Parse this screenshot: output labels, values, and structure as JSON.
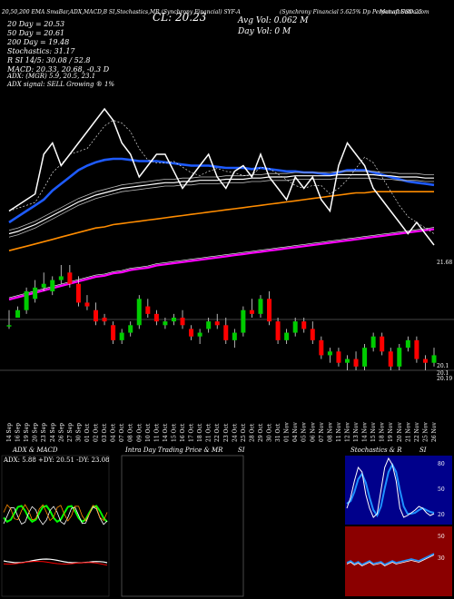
{
  "header": {
    "top_line": "20,50,200 EMA SmaBar,ADX,MACD,B    SI,Stochastics,MR       (Synchrony Financial) SYF-A",
    "right_title": "(Synchrony Financial 5.625% Dp Perpetual USD 25",
    "brand": "MunafaSutra.com",
    "cl": "CL: 20.23",
    "avg_vol": "Avg Vol: 0.062  M",
    "day_vol": "Day Vol: 0   M",
    "ma_lines": [
      "20  Day  = 20.53",
      "50  Day  = 20.61",
      "200  Day  = 19.48"
    ],
    "stoch": [
      "Stochastics: 31.17",
      "R          SI 14/5: 30.08  / 52.8"
    ],
    "macd": "MACD: 20.33, 20.68, -0.3 D",
    "adx": "ADX:                          (MGR) 5.9, 20.5, 23.1",
    "adx_signal": "ADX  signal: SELL Growing ® 1%"
  },
  "price_axis": {
    "top_label": "21.68",
    "bottom_labels": [
      "20.1",
      "20.1",
      "20.19"
    ]
  },
  "dates": [
    "14 Sep",
    "16 Sep",
    "19 Sep",
    "20 Sep",
    "23 Sep",
    "24 Sep",
    "26 Sep",
    "27 Sep",
    "30 Sep",
    "01 Oct",
    "02 Oct",
    "03 Oct",
    "04 Oct",
    "07 Oct",
    "08 Oct",
    "09 Oct",
    "10 Oct",
    "11 Oct",
    "14 Oct",
    "15 Oct",
    "16 Oct",
    "17 Oct",
    "18 Oct",
    "21 Oct",
    "22 Oct",
    "23 Oct",
    "24 Oct",
    "25 Oct",
    "28 Oct",
    "29 Oct",
    "30 Oct",
    "31 Oct",
    "01 Nov",
    "04 Nov",
    "05 Nov",
    "06 Nov",
    "07 Nov",
    "08 Nov",
    "11 Nov",
    "12 Nov",
    "13 Nov",
    "14 Nov",
    "15 Nov",
    "18 Nov",
    "19 Nov",
    "20 Nov",
    "21 Nov",
    "22 Nov",
    "25 Nov",
    "26 Nov"
  ],
  "panels": {
    "adx": {
      "title": "ADX  & MACD",
      "readout": "ADX: 5.88  +DY: 20.51 -DY: 23.08"
    },
    "intra": {
      "title": "Intra  Day Trading Price  & MR",
      "si": "SI"
    },
    "stoch": {
      "title": "Stochastics & R",
      "si": "SI",
      "right_labels": [
        "80",
        "50",
        "20"
      ],
      "mrsi_labels": [
        "50",
        "30"
      ]
    }
  },
  "colors": {
    "up": "#00cc00",
    "down": "#ff0000",
    "ema20": "#1e5bff",
    "ema50": "#ffffff",
    "ema200": "#ff8c00",
    "sma": "#ff00ff",
    "stoch_bg": "#00008b",
    "mrsi_bg": "#8b0000"
  },
  "chart_data": {
    "type": "candlestick",
    "ylim": [
      19.9,
      22.3
    ],
    "categories": [
      "14 Sep",
      "16 Sep",
      "19 Sep",
      "20 Sep",
      "23 Sep",
      "24 Sep",
      "26 Sep",
      "27 Sep",
      "30 Sep",
      "01 Oct",
      "02 Oct",
      "03 Oct",
      "04 Oct",
      "07 Oct",
      "08 Oct",
      "09 Oct",
      "10 Oct",
      "11 Oct",
      "14 Oct",
      "15 Oct",
      "16 Oct",
      "17 Oct",
      "18 Oct",
      "21 Oct",
      "22 Oct",
      "23 Oct",
      "24 Oct",
      "25 Oct",
      "28 Oct",
      "29 Oct",
      "30 Oct",
      "31 Oct",
      "01 Nov",
      "04 Nov",
      "05 Nov",
      "06 Nov",
      "07 Nov",
      "08 Nov",
      "11 Nov",
      "12 Nov",
      "13 Nov",
      "14 Nov",
      "15 Nov",
      "18 Nov",
      "19 Nov",
      "20 Nov",
      "21 Nov",
      "22 Nov",
      "25 Nov",
      "26 Nov"
    ],
    "close_line": [
      21.4,
      21.45,
      21.5,
      21.55,
      21.9,
      22.0,
      21.8,
      21.9,
      22.0,
      22.1,
      22.2,
      22.3,
      22.2,
      22.0,
      21.9,
      21.7,
      21.8,
      21.9,
      21.9,
      21.75,
      21.6,
      21.7,
      21.8,
      21.9,
      21.7,
      21.6,
      21.75,
      21.8,
      21.7,
      21.9,
      21.7,
      21.6,
      21.5,
      21.7,
      21.6,
      21.7,
      21.5,
      21.4,
      21.8,
      22.0,
      21.9,
      21.8,
      21.6,
      21.5,
      21.4,
      21.3,
      21.2,
      21.3,
      21.2,
      21.1
    ],
    "candles": [
      [
        20.6,
        20.8,
        20.55,
        20.6
      ],
      [
        20.7,
        20.85,
        20.7,
        20.8
      ],
      [
        20.8,
        21.1,
        20.75,
        21.05
      ],
      [
        20.95,
        21.2,
        20.9,
        21.1
      ],
      [
        21.1,
        21.3,
        21.05,
        21.15
      ],
      [
        21.05,
        21.25,
        21.0,
        21.2
      ],
      [
        21.2,
        21.4,
        21.15,
        21.25
      ],
      [
        21.3,
        21.4,
        21.1,
        21.15
      ],
      [
        21.15,
        21.25,
        20.85,
        20.9
      ],
      [
        20.9,
        21.0,
        20.8,
        20.85
      ],
      [
        20.8,
        20.9,
        20.6,
        20.65
      ],
      [
        20.7,
        20.75,
        20.6,
        20.65
      ],
      [
        20.6,
        20.65,
        20.35,
        20.4
      ],
      [
        20.4,
        20.55,
        20.35,
        20.5
      ],
      [
        20.5,
        20.65,
        20.45,
        20.6
      ],
      [
        20.6,
        21.0,
        20.55,
        20.95
      ],
      [
        20.85,
        20.95,
        20.7,
        20.75
      ],
      [
        20.75,
        20.8,
        20.6,
        20.65
      ],
      [
        20.6,
        20.7,
        20.55,
        20.65
      ],
      [
        20.65,
        20.75,
        20.6,
        20.7
      ],
      [
        20.7,
        20.8,
        20.55,
        20.6
      ],
      [
        20.55,
        20.6,
        20.4,
        20.45
      ],
      [
        20.45,
        20.55,
        20.35,
        20.5
      ],
      [
        20.55,
        20.7,
        20.5,
        20.65
      ],
      [
        20.65,
        20.75,
        20.55,
        20.6
      ],
      [
        20.6,
        20.7,
        20.35,
        20.4
      ],
      [
        20.4,
        20.55,
        20.3,
        20.5
      ],
      [
        20.5,
        20.85,
        20.45,
        20.8
      ],
      [
        20.8,
        20.95,
        20.7,
        20.75
      ],
      [
        20.75,
        21.0,
        20.7,
        20.95
      ],
      [
        20.95,
        21.05,
        20.6,
        20.65
      ],
      [
        20.65,
        20.7,
        20.35,
        20.4
      ],
      [
        20.4,
        20.55,
        20.35,
        20.5
      ],
      [
        20.5,
        20.7,
        20.45,
        20.65
      ],
      [
        20.65,
        20.7,
        20.5,
        20.55
      ],
      [
        20.55,
        20.65,
        20.35,
        20.4
      ],
      [
        20.4,
        20.45,
        20.15,
        20.2
      ],
      [
        20.2,
        20.3,
        20.1,
        20.25
      ],
      [
        20.25,
        20.3,
        20.05,
        20.1
      ],
      [
        20.1,
        20.2,
        20.0,
        20.15
      ],
      [
        20.15,
        20.25,
        20.0,
        20.05
      ],
      [
        20.05,
        20.35,
        20.0,
        20.3
      ],
      [
        20.3,
        20.5,
        20.25,
        20.45
      ],
      [
        20.45,
        20.5,
        20.2,
        20.25
      ],
      [
        20.25,
        20.3,
        20.0,
        20.05
      ],
      [
        20.05,
        20.35,
        20.0,
        20.3
      ],
      [
        20.3,
        20.45,
        20.25,
        20.4
      ],
      [
        20.4,
        20.45,
        20.1,
        20.15
      ],
      [
        20.15,
        20.2,
        20.0,
        20.1
      ],
      [
        20.1,
        20.3,
        20.05,
        20.2
      ]
    ],
    "series": [
      {
        "values": [
          21.3,
          21.35,
          21.4,
          21.45,
          21.5,
          21.58,
          21.64,
          21.7,
          21.76,
          21.8,
          21.83,
          21.85,
          21.86,
          21.86,
          21.85,
          21.84,
          21.84,
          21.84,
          21.83,
          21.82,
          21.81,
          21.8,
          21.8,
          21.8,
          21.79,
          21.78,
          21.78,
          21.78,
          21.77,
          21.78,
          21.77,
          21.76,
          21.75,
          21.75,
          21.74,
          21.74,
          21.73,
          21.72,
          21.74,
          21.76,
          21.76,
          21.76,
          21.74,
          21.72,
          21.7,
          21.68,
          21.66,
          21.65,
          21.64,
          21.63
        ]
      },
      {
        "values": [
          21.2,
          21.22,
          21.25,
          21.28,
          21.32,
          21.36,
          21.4,
          21.44,
          21.48,
          21.51,
          21.54,
          21.56,
          21.58,
          21.6,
          21.61,
          21.62,
          21.63,
          21.64,
          21.65,
          21.65,
          21.66,
          21.66,
          21.67,
          21.67,
          21.67,
          21.68,
          21.68,
          21.68,
          21.69,
          21.69,
          21.7,
          21.7,
          21.7,
          21.71,
          21.71,
          21.71,
          21.71,
          21.71,
          21.72,
          21.72,
          21.72,
          21.72,
          21.72,
          21.71,
          21.71,
          21.7,
          21.7,
          21.7,
          21.69,
          21.69
        ]
      },
      {
        "values": [
          21.05,
          21.07,
          21.09,
          21.11,
          21.13,
          21.15,
          21.17,
          21.19,
          21.21,
          21.23,
          21.25,
          21.26,
          21.28,
          21.29,
          21.3,
          21.31,
          21.32,
          21.33,
          21.34,
          21.35,
          21.36,
          21.37,
          21.38,
          21.39,
          21.4,
          21.41,
          21.42,
          21.43,
          21.44,
          21.45,
          21.46,
          21.47,
          21.48,
          21.49,
          21.5,
          21.51,
          21.52,
          21.53,
          21.54,
          21.55,
          21.56,
          21.56,
          21.57,
          21.57,
          21.57,
          21.57,
          21.57,
          21.57,
          21.57,
          21.57
        ]
      },
      {
        "values": [
          20.62,
          20.64,
          20.66,
          20.68,
          20.7,
          20.72,
          20.74,
          20.76,
          20.78,
          20.8,
          20.82,
          20.83,
          20.85,
          20.86,
          20.88,
          20.89,
          20.9,
          20.92,
          20.93,
          20.94,
          20.95,
          20.96,
          20.97,
          20.98,
          20.99,
          21.0,
          21.01,
          21.02,
          21.03,
          21.04,
          21.05,
          21.06,
          21.07,
          21.08,
          21.09,
          21.1,
          21.11,
          21.12,
          21.13,
          21.14,
          21.15,
          21.16,
          21.17,
          21.18,
          21.19,
          21.2,
          21.21,
          21.22,
          21.23,
          21.24
        ]
      }
    ]
  }
}
